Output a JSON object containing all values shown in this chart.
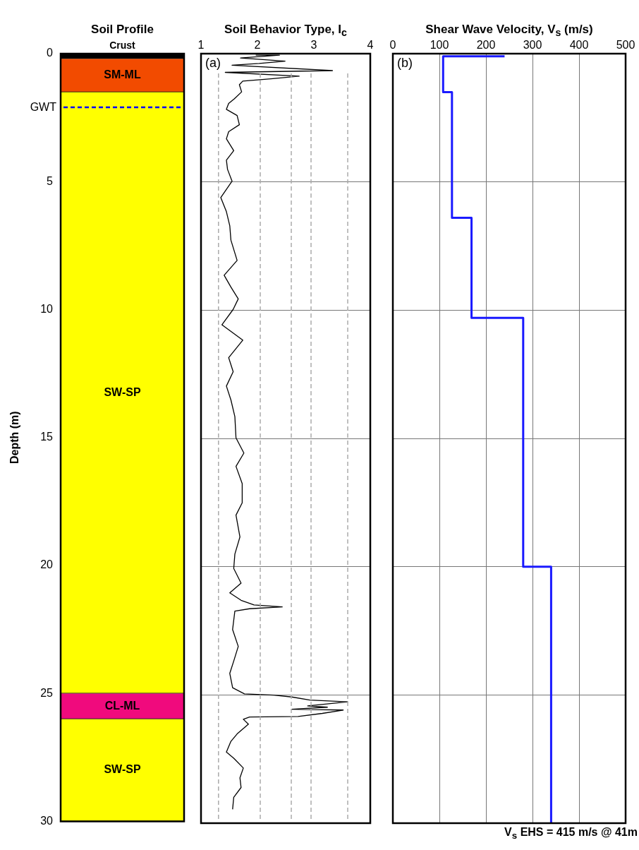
{
  "chart_data": [
    {
      "type": "bar",
      "title": "Soil Profile",
      "ylabel": "Depth (m)",
      "categories": [
        null
      ],
      "stacked": true,
      "ylim": [
        30,
        0
      ],
      "yticks": [
        0,
        5,
        10,
        15,
        20,
        25,
        30
      ],
      "tick_labels": "y",
      "series": [
        {
          "name": "Crust",
          "color": "#000000",
          "values": [
            0.2
          ]
        },
        {
          "name": "SM-ML",
          "color": "#f24b00",
          "values": [
            1.3
          ]
        },
        {
          "name": "SW-SP",
          "color": "#ffff00",
          "values": [
            23.5
          ]
        },
        {
          "name": "CL-ML",
          "color": "#f00a7d",
          "values": [
            1
          ]
        },
        {
          "name": "SW-SP",
          "color": "#ffff00",
          "values": [
            4
          ]
        }
      ],
      "ref_lines": [
        {
          "axis": "y",
          "value": 2.1,
          "label": "GWT",
          "color": "#0000ff",
          "line_style": "dashed"
        }
      ]
    },
    {
      "type": "line",
      "title": "Soil Behavior Type, I$_{c}$",
      "xlim": [
        1,
        4
      ],
      "xticks": [
        1,
        2,
        3,
        4
      ],
      "ylim": [
        30,
        0
      ],
      "yticks": [
        0,
        5,
        10,
        15,
        20,
        25,
        30
      ],
      "tick_labels": "x",
      "grid": "y",
      "annotations": [
        "(a)"
      ],
      "series": [
        {
          "color": "#000000",
          "x": [
            1.97,
            2.39,
            1.7,
            2.49,
            2.03,
            1.55,
            3.33,
            1.43,
            2.74,
            2.24,
            1.74,
            1.68,
            1.72,
            1.59,
            1.49,
            1.45,
            1.64,
            1.68,
            1.49,
            1.45,
            1.58,
            1.45,
            1.47,
            1.55,
            1.35,
            1.45,
            1.51,
            1.53,
            1.64,
            1.41,
            1.53,
            1.66,
            1.57,
            1.37,
            1.74,
            1.49,
            1.57,
            1.45,
            1.53,
            1.6,
            1.62,
            1.76,
            1.62,
            1.73,
            1.73,
            1.62,
            1.69,
            1.6,
            1.58,
            1.71,
            1.51,
            1.71,
            1.94,
            2.44,
            1.86,
            1.6,
            1.56,
            1.66,
            1.58,
            1.51,
            1.56,
            1.77,
            2.29,
            2.61,
            2.93,
            3.6,
            2.89,
            3.24,
            2.61,
            3.52,
            3.15,
            2.72,
            1.86,
            1.75,
            1.84,
            1.64,
            1.53,
            1.45,
            1.58,
            1.75,
            1.69,
            1.71,
            1.58,
            1.56
          ],
          "values": [
            0.06,
            0.06,
            0.17,
            0.29,
            0.38,
            0.45,
            0.66,
            0.73,
            0.88,
            0.98,
            1.07,
            1.21,
            1.49,
            1.76,
            1.94,
            2.17,
            2.41,
            2.77,
            3.04,
            3.32,
            3.78,
            4.15,
            4.51,
            4.97,
            5.61,
            6.16,
            6.71,
            7.27,
            8.06,
            8.64,
            9.1,
            9.56,
            9.97,
            10.57,
            11.17,
            11.85,
            12.4,
            12.96,
            13.5,
            14.15,
            14.98,
            15.57,
            16.09,
            16.76,
            17.51,
            17.99,
            18.84,
            19.51,
            20.07,
            20.64,
            21.02,
            21.31,
            21.49,
            21.57,
            21.64,
            21.73,
            22.45,
            23.11,
            23.68,
            24.16,
            24.72,
            24.96,
            25.01,
            25.08,
            25.2,
            25.27,
            25.43,
            25.48,
            25.56,
            25.59,
            25.72,
            25.84,
            25.86,
            25.95,
            26.14,
            26.52,
            26.81,
            27.23,
            27.47,
            27.85,
            28.23,
            28.61,
            28.99,
            29.46
          ]
        }
      ],
      "ref_lines": [
        {
          "axis": "x",
          "value": 1.31,
          "color": "#aaaaaa",
          "line_style": "dashed"
        },
        {
          "axis": "x",
          "value": 2.05,
          "color": "#aaaaaa",
          "line_style": "dashed"
        },
        {
          "axis": "x",
          "value": 2.6,
          "color": "#aaaaaa",
          "line_style": "dashed"
        },
        {
          "axis": "x",
          "value": 2.95,
          "color": "#aaaaaa",
          "line_style": "dashed"
        },
        {
          "axis": "x",
          "value": 3.6,
          "color": "#aaaaaa",
          "line_style": "dashed"
        }
      ]
    },
    {
      "type": "step",
      "title": "Shear Wave Velocity, V$_{s}$ (m/s)",
      "xlim": [
        0,
        500
      ],
      "xticks": [
        0,
        100,
        200,
        300,
        400,
        500
      ],
      "ylim": [
        30,
        0
      ],
      "yticks": [
        0,
        5,
        10,
        15,
        20,
        25,
        30
      ],
      "tick_labels": "x",
      "grid": true,
      "annotations": [
        "(b)",
        "V$_{s}$ EHS = 415 m/s @ 41m"
      ],
      "series": [
        {
          "color": "#1a1aff",
          "x": [
            240,
            108,
            108,
            127,
            127,
            169,
            169,
            280,
            280,
            340,
            340
          ],
          "values": [
            0.1,
            0.1,
            1.5,
            1.5,
            6.4,
            6.4,
            10.3,
            10.3,
            20,
            20,
            30
          ]
        }
      ]
    }
  ]
}
